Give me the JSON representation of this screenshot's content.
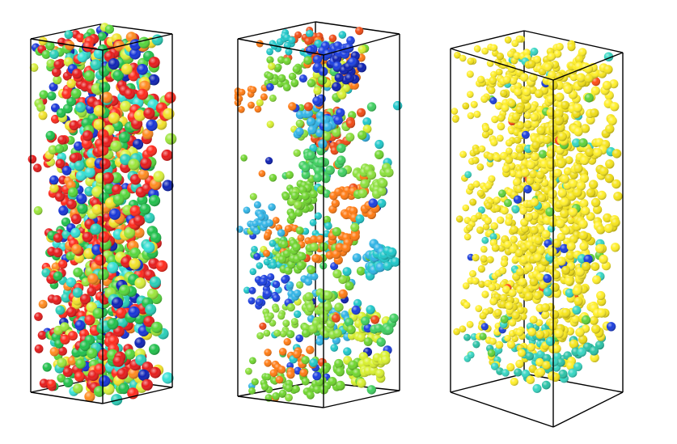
{
  "figure": {
    "background": "#ffffff",
    "frame_color": "#000000",
    "panels": [
      {
        "id": "panel-1",
        "label": "",
        "particle_count_shown": 1100,
        "palette": [
          "#e51b1b",
          "#ff2a1c",
          "#20c04b",
          "#55d63a",
          "#28cfb8",
          "#35e0d5",
          "#1534d8",
          "#0e22b5",
          "#f2e22a",
          "#d9f03a",
          "#ff8a1e",
          "#9be63a"
        ],
        "weights": [
          0.17,
          0.14,
          0.12,
          0.08,
          0.09,
          0.05,
          0.07,
          0.03,
          0.07,
          0.05,
          0.07,
          0.06
        ],
        "clustering": "uniform"
      },
      {
        "id": "panel-2",
        "label": "",
        "particle_count_shown": 1000,
        "palette": [
          "#6fd52e",
          "#8be03a",
          "#3fcf5f",
          "#1ec7c9",
          "#30b4e6",
          "#1b3ee0",
          "#0c1fb0",
          "#ff7a12",
          "#f04a14",
          "#d8f02e"
        ],
        "weights": [
          0.22,
          0.14,
          0.11,
          0.1,
          0.07,
          0.1,
          0.05,
          0.08,
          0.06,
          0.07
        ],
        "clustering": "clusters"
      },
      {
        "id": "panel-3",
        "label": "",
        "particle_count_shown": 1150,
        "palette": [
          "#ffef2a",
          "#f6e51c",
          "#eedc14",
          "#35d6c2",
          "#1a3ddc",
          "#ff4a14",
          "#5fd23a"
        ],
        "weights": [
          0.5,
          0.28,
          0.12,
          0.05,
          0.02,
          0.01,
          0.02
        ],
        "clustering": "percolating"
      }
    ]
  }
}
